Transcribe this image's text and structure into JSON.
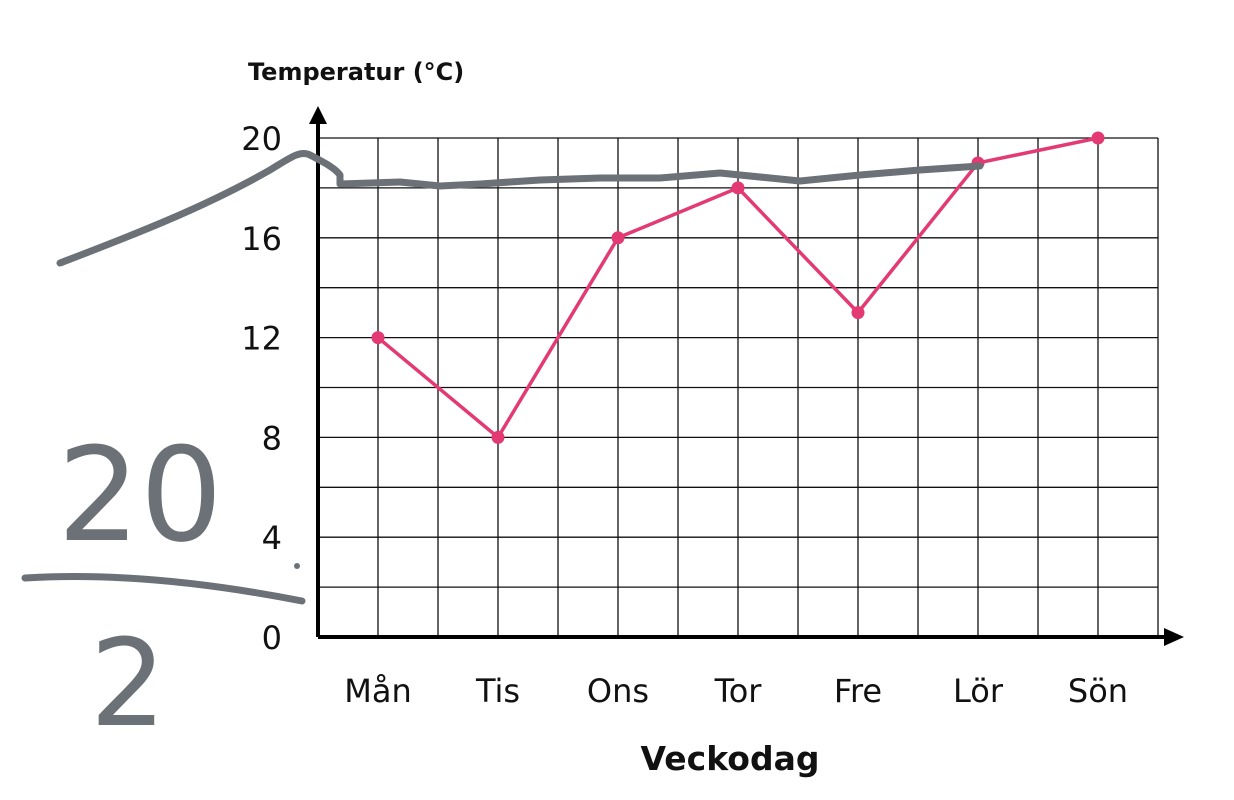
{
  "chart_data": {
    "type": "line",
    "ylabel": "Temperatur (°C)",
    "xlabel": "Veckodag",
    "categories": [
      "Mån",
      "Tis",
      "Ons",
      "Tor",
      "Fre",
      "Lör",
      "Sön"
    ],
    "series": [
      {
        "values": [
          12,
          8,
          16,
          18,
          13,
          19,
          20
        ],
        "color": "#e33a73"
      }
    ],
    "yticks": [
      "0",
      "4",
      "8",
      "12",
      "16",
      "20"
    ],
    "ylim": [
      0,
      20
    ],
    "grid": true,
    "legend": "none"
  },
  "annotations": {
    "handwritten_fraction": {
      "numerator": "20",
      "denominator": "2",
      "color": "#6b7176"
    }
  }
}
